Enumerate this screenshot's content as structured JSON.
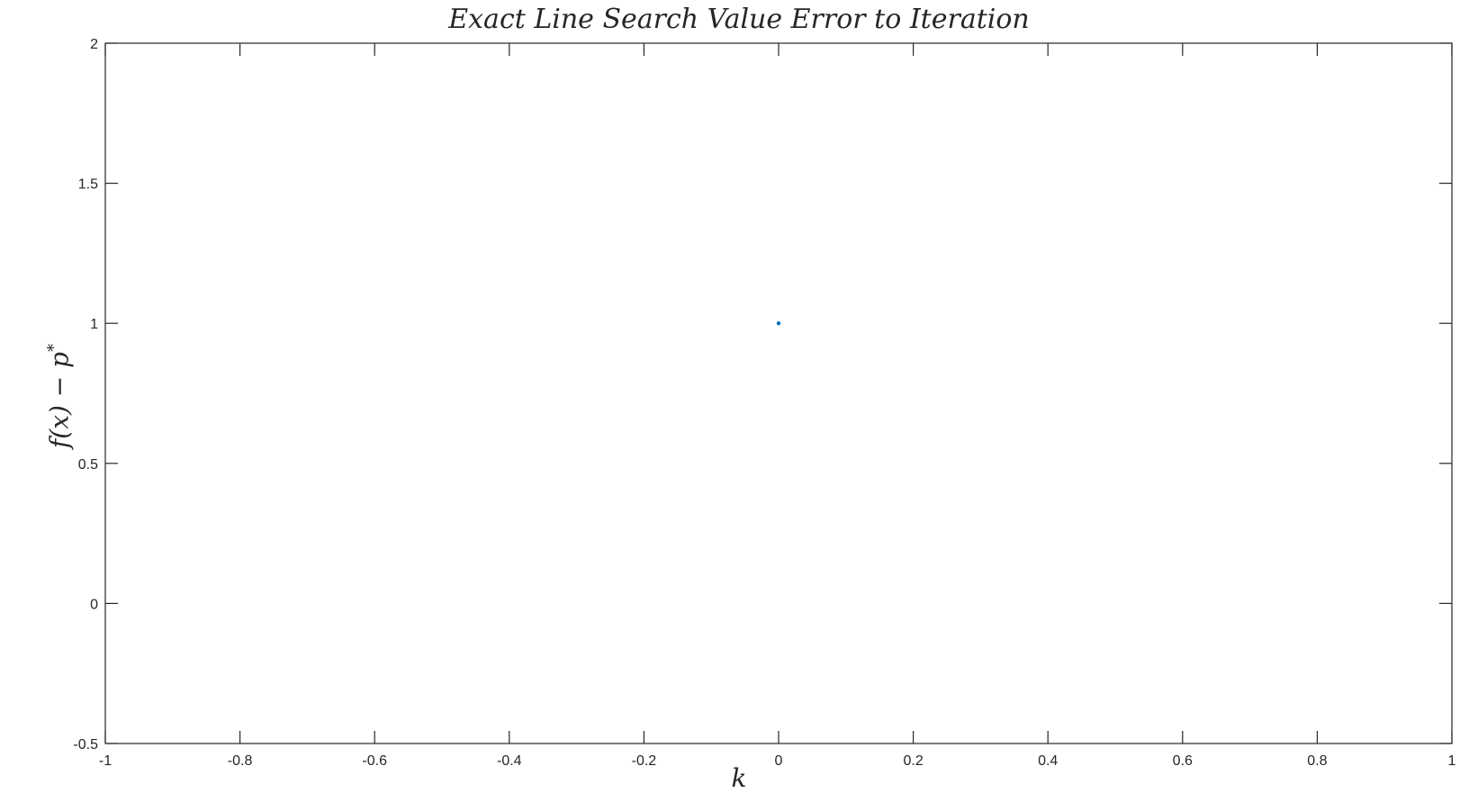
{
  "chart_data": {
    "type": "scatter",
    "title": "Exact Line Search Value Error to Iteration",
    "xlabel": "k",
    "ylabel": {
      "base": "f(x) − p",
      "sup": "*"
    },
    "xlim": [
      -1,
      1
    ],
    "ylim": [
      -0.5,
      2
    ],
    "xticks": [
      -1,
      -0.8,
      -0.6,
      -0.4,
      -0.2,
      0,
      0.2,
      0.4,
      0.6,
      0.8,
      1
    ],
    "xtick_labels": [
      "-1",
      "-0.8",
      "-0.6",
      "-0.4",
      "-0.2",
      "0",
      "0.2",
      "0.4",
      "0.6",
      "0.8",
      "1"
    ],
    "yticks": [
      -0.5,
      0,
      0.5,
      1,
      1.5,
      2
    ],
    "ytick_labels": [
      "-0.5",
      "0",
      "0.5",
      "1",
      "1.5",
      "2"
    ],
    "grid": false,
    "series": [
      {
        "x": [
          0
        ],
        "y": [
          1
        ],
        "color": "#0072bd"
      }
    ]
  }
}
